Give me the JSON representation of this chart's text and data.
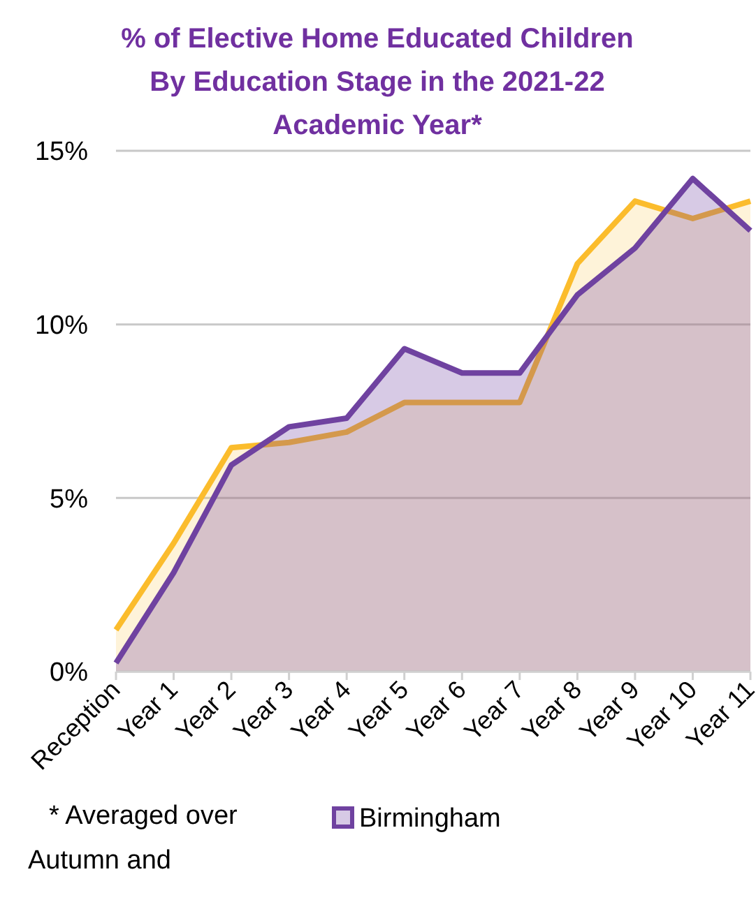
{
  "chart_data": {
    "type": "area",
    "title": "% of Elective Home Educated Children By Education Stage in the 2021-22 Academic Year*",
    "categories": [
      "Reception",
      "Year 1",
      "Year 2",
      "Year 3",
      "Year 4",
      "Year 5",
      "Year 6",
      "Year 7",
      "Year 8",
      "Year 9",
      "Year 10",
      "Year 11"
    ],
    "series": [
      {
        "color": "#fbbc2c",
        "values": [
          1.2,
          3.7,
          6.45,
          6.6,
          6.9,
          7.75,
          7.75,
          7.75,
          11.75,
          13.55,
          13.05,
          13.55
        ]
      },
      {
        "name": "Birmingham",
        "color": "#6f42a0",
        "values": [
          0.25,
          2.85,
          5.95,
          7.05,
          7.3,
          9.3,
          8.6,
          8.6,
          10.85,
          12.2,
          14.2,
          12.7
        ]
      }
    ],
    "ylim": [
      0,
      15
    ],
    "yticks": [
      {
        "value": 0,
        "label": "0%"
      },
      {
        "value": 5,
        "label": "5%"
      },
      {
        "value": 10,
        "label": "10%"
      },
      {
        "value": 15,
        "label": "15%"
      }
    ],
    "grid": "y",
    "legend": "bottom",
    "annotations": [
      "* Averaged over Autumn and"
    ]
  }
}
